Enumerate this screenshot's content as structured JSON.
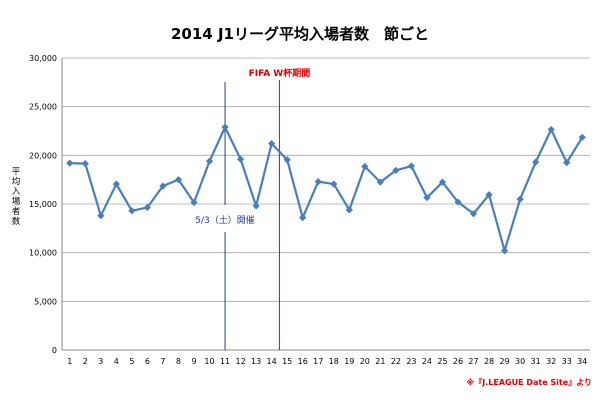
{
  "chart_data": {
    "type": "line",
    "title": "2014 J1リーグ平均入場者数　節ごと",
    "ylabel_chars": [
      "平",
      "均",
      "入",
      "場",
      "者",
      "数"
    ],
    "x": [
      "1",
      "2",
      "3",
      "4",
      "5",
      "6",
      "7",
      "8",
      "9",
      "10",
      "11",
      "12",
      "13",
      "14",
      "15",
      "16",
      "17",
      "18",
      "19",
      "20",
      "21",
      "22",
      "23",
      "24",
      "25",
      "26",
      "27",
      "28",
      "29",
      "30",
      "31",
      "32",
      "33",
      "34"
    ],
    "series": [
      {
        "values": [
          19200,
          19150,
          13800,
          17050,
          14300,
          14650,
          16850,
          17500,
          15150,
          19400,
          22900,
          19600,
          14800,
          21200,
          19550,
          13600,
          17300,
          17050,
          14400,
          18850,
          17250,
          18450,
          18900,
          15650,
          17250,
          15200,
          14000,
          15950,
          10200,
          15500,
          19300,
          22650,
          19250,
          21850
        ],
        "color": "#4a7ebb"
      }
    ],
    "ylim": [
      0,
      30000
    ],
    "yticks": [
      "0",
      "5,000",
      "10,000",
      "15,000",
      "20,000",
      "25,000",
      "30,000"
    ],
    "ytick_values": [
      0,
      5000,
      10000,
      15000,
      20000,
      25000,
      30000
    ],
    "grid": "horizontal",
    "annotations": [
      {
        "text": "FIFA W杯期間",
        "x": 14.5,
        "color": "#e00000"
      },
      {
        "text": "5/3（土）開催",
        "x": 11,
        "color": "#1f3f8f"
      }
    ],
    "source": "※『J.LEAGUE Date Site』より"
  }
}
